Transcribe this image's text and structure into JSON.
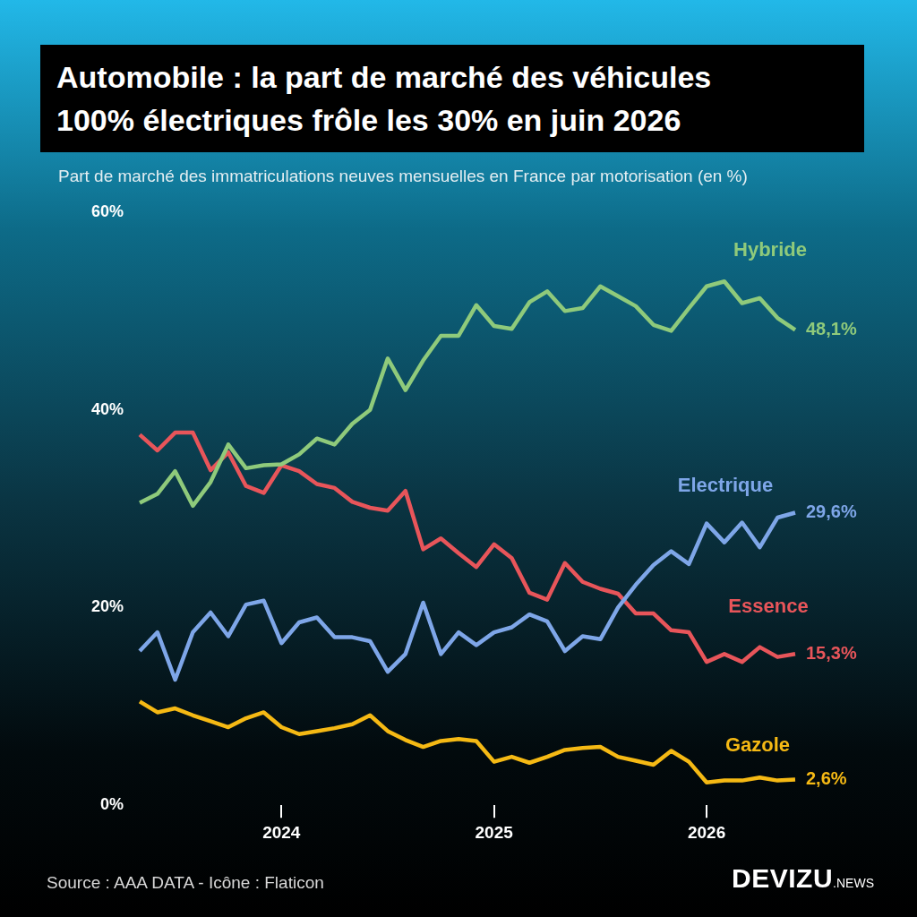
{
  "chart_data": {
    "type": "line",
    "title": "Automobile : la part de marché des véhicules\n100% électriques frôle les 30% en juin 2026",
    "subtitle": "Part de marché des immatriculations neuves mensuelles en France par motorisation (en %)",
    "source": "Source : AAA DATA - Icône : Flaticon",
    "brand": "DEVIZU",
    "brand_suffix": ".NEWS",
    "categories": [
      null,
      null,
      null,
      null,
      null,
      null,
      null,
      null,
      "2024",
      null,
      null,
      null,
      null,
      null,
      null,
      null,
      null,
      null,
      null,
      null,
      "2025",
      null,
      null,
      null,
      null,
      null,
      null,
      null,
      null,
      null,
      null,
      null,
      "2026",
      null,
      null,
      null,
      null,
      null
    ],
    "series": [
      {
        "name": "Hybride",
        "color": "#8fca7b",
        "end_label": "48,1%",
        "values": [
          30.6,
          31.5,
          33.8,
          30.3,
          32.7,
          36.5,
          34.1,
          34.4,
          34.5,
          35.5,
          37.1,
          36.5,
          38.6,
          40.0,
          45.2,
          42.0,
          45.0,
          47.5,
          47.5,
          50.6,
          48.5,
          48.2,
          50.9,
          52.0,
          50.0,
          50.3,
          52.5,
          51.5,
          50.5,
          48.6,
          48.0,
          50.3,
          52.5,
          53.0,
          50.8,
          51.3,
          49.3,
          48.1
        ]
      },
      {
        "name": "Electrique",
        "color": "#7ea6e8",
        "end_label": "29,6%",
        "values": [
          15.6,
          17.5,
          12.7,
          17.5,
          19.5,
          17.1,
          20.3,
          20.7,
          16.4,
          18.5,
          19.0,
          17.0,
          17.0,
          16.6,
          13.5,
          15.3,
          20.5,
          15.3,
          17.5,
          16.2,
          17.5,
          18.0,
          19.3,
          18.6,
          15.6,
          17.1,
          16.8,
          20.0,
          22.3,
          24.3,
          25.7,
          24.4,
          28.5,
          26.6,
          28.6,
          26.1,
          29.1,
          29.6
        ]
      },
      {
        "name": "Essence",
        "color": "#e8555a",
        "end_label": "15,3%",
        "values": [
          37.5,
          35.9,
          37.7,
          37.7,
          33.9,
          35.7,
          32.3,
          31.6,
          34.4,
          33.8,
          32.5,
          32.1,
          30.7,
          30.1,
          29.8,
          31.8,
          25.9,
          27.0,
          25.5,
          24.1,
          26.4,
          25.0,
          21.5,
          20.8,
          24.5,
          22.6,
          21.9,
          21.4,
          19.4,
          19.4,
          17.7,
          17.5,
          14.5,
          15.3,
          14.5,
          16.0,
          15.0,
          15.3
        ]
      },
      {
        "name": "Gazole",
        "color": "#f5b914",
        "end_label": "2,6%",
        "values": [
          10.5,
          9.4,
          9.8,
          9.1,
          8.5,
          7.9,
          8.8,
          9.4,
          7.9,
          7.2,
          7.5,
          7.8,
          8.2,
          9.1,
          7.5,
          6.6,
          5.9,
          6.5,
          6.7,
          6.5,
          4.4,
          4.9,
          4.3,
          4.9,
          5.6,
          5.8,
          5.9,
          4.9,
          4.5,
          4.1,
          5.5,
          4.4,
          2.3,
          2.5,
          2.5,
          2.8,
          2.5,
          2.6
        ]
      }
    ],
    "ylim": [
      0,
      60
    ],
    "yticks": [
      {
        "value": 0,
        "label": "0%"
      },
      {
        "value": 20,
        "label": "20%"
      },
      {
        "value": 40,
        "label": "40%"
      },
      {
        "value": 60,
        "label": "60%"
      }
    ],
    "grid": false
  }
}
